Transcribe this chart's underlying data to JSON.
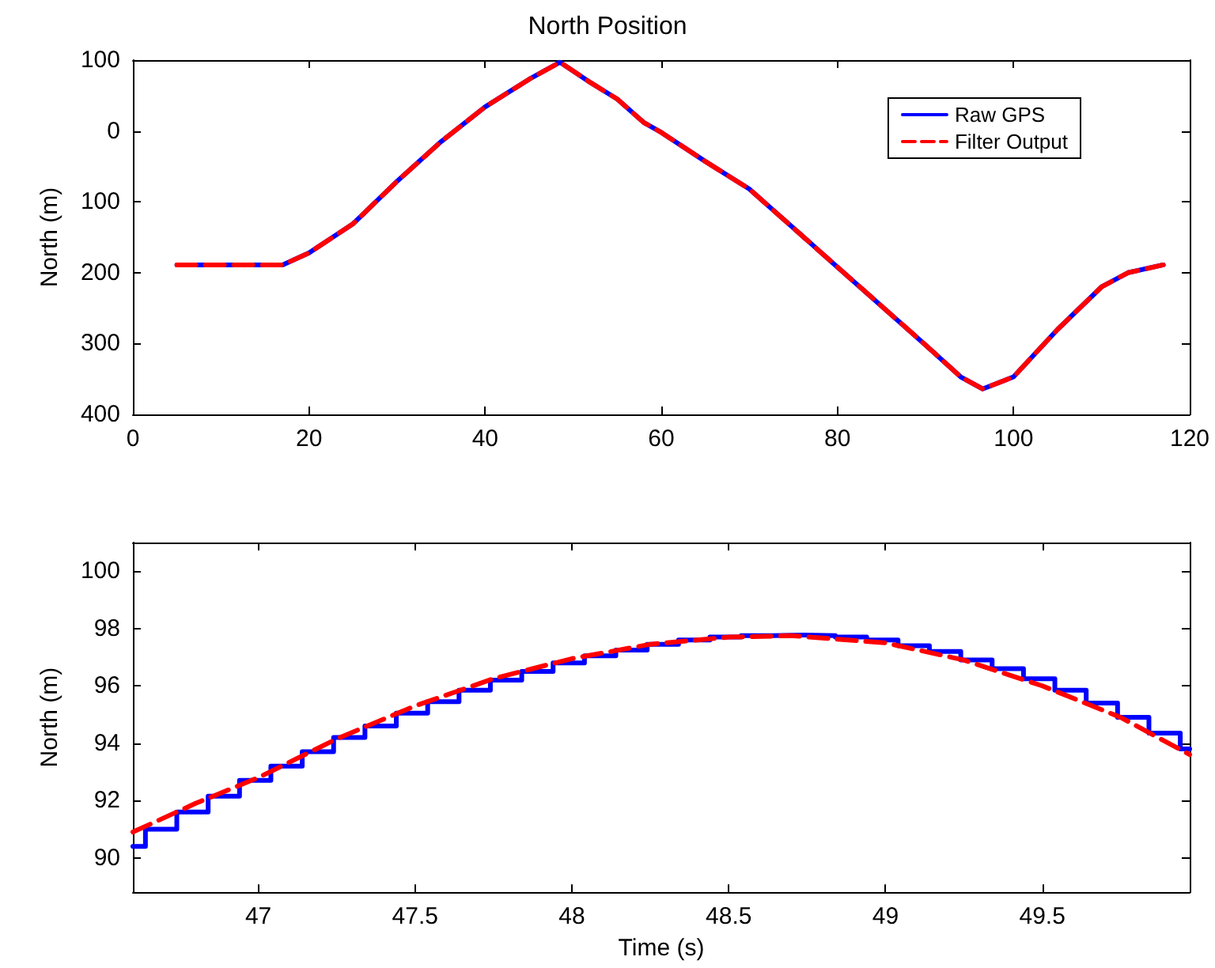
{
  "chart_data": [
    {
      "type": "line",
      "title": "North Position",
      "ylabel": "North (m)",
      "xlim": [
        0,
        120
      ],
      "xticks": [
        0,
        20,
        40,
        60,
        80,
        100,
        120
      ],
      "ylim": [
        -400,
        100
      ],
      "yticks": [
        100,
        0,
        {
          "value": -100,
          "label": "100"
        },
        {
          "value": -200,
          "label": "200"
        },
        {
          "value": -300,
          "label": "300"
        },
        {
          "value": -400,
          "label": "400"
        }
      ],
      "grid": false,
      "legend": "top right",
      "marker": "none",
      "series": [
        {
          "name": "Raw GPS",
          "color": "#0000ff",
          "line_style": "solid",
          "x": [
            5,
            10,
            17,
            20,
            25,
            30,
            35,
            40,
            45,
            48.5,
            52,
            55,
            58,
            60,
            65,
            70,
            75,
            80,
            85,
            90,
            94,
            96.5,
            100,
            105,
            110,
            113,
            117
          ],
          "values": [
            -189,
            -189,
            -189,
            -172,
            -131,
            -71,
            -15,
            34,
            73,
            97,
            68,
            45,
            12,
            -2,
            -43,
            -82,
            -137,
            -192,
            -247,
            -302,
            -347,
            -364,
            -347,
            -280,
            -220,
            -200,
            -189
          ]
        },
        {
          "name": "Filter Output",
          "color": "#ff0000",
          "line_style": "dashed",
          "x": [
            5,
            10,
            17,
            20,
            25,
            30,
            35,
            40,
            45,
            48.5,
            52,
            55,
            58,
            60,
            65,
            70,
            75,
            80,
            85,
            90,
            94,
            96.5,
            100,
            105,
            110,
            113,
            117
          ],
          "values": [
            -189,
            -189,
            -189,
            -172,
            -131,
            -71,
            -15,
            34,
            73,
            97,
            68,
            45,
            12,
            -2,
            -43,
            -82,
            -137,
            -192,
            -247,
            -302,
            -347,
            -364,
            -347,
            -280,
            -220,
            -200,
            -189
          ]
        }
      ]
    },
    {
      "type": "line",
      "xlabel": "Time (s)",
      "ylabel": "North (m)",
      "xlim": [
        46.6,
        49.97
      ],
      "xticks": [
        47,
        47.5,
        48,
        48.5,
        49,
        49.5
      ],
      "ylim": [
        88.8,
        101
      ],
      "yticks": [
        90,
        92,
        94,
        96,
        98,
        100
      ],
      "grid": false,
      "legend": false,
      "marker": "none",
      "series": [
        {
          "type": "step",
          "color": "#0000ff",
          "line_style": "solid",
          "x": [
            46.6,
            46.64,
            46.74,
            46.84,
            46.94,
            47.04,
            47.14,
            47.24,
            47.34,
            47.44,
            47.54,
            47.64,
            47.74,
            47.84,
            47.94,
            48.04,
            48.14,
            48.24,
            48.34,
            48.44,
            48.54,
            48.64,
            48.74,
            48.84,
            48.94,
            49.04,
            49.14,
            49.24,
            49.34,
            49.44,
            49.54,
            49.64,
            49.74,
            49.84,
            49.94,
            49.97
          ],
          "values": [
            90.4,
            91.0,
            91.6,
            92.15,
            92.7,
            93.2,
            93.7,
            94.2,
            94.6,
            95.05,
            95.45,
            95.85,
            96.2,
            96.5,
            96.8,
            97.05,
            97.25,
            97.45,
            97.6,
            97.7,
            97.75,
            97.77,
            97.75,
            97.7,
            97.6,
            97.4,
            97.2,
            96.9,
            96.6,
            96.25,
            95.85,
            95.4,
            94.9,
            94.35,
            93.8,
            93.8
          ]
        },
        {
          "color": "#ff0000",
          "line_style": "dashed",
          "x": [
            46.6,
            46.8,
            47,
            47.25,
            47.5,
            47.75,
            48,
            48.25,
            48.5,
            48.7,
            49,
            49.25,
            49.5,
            49.75,
            49.97
          ],
          "values": [
            90.9,
            91.9,
            92.8,
            94.15,
            95.3,
            96.25,
            96.95,
            97.45,
            97.7,
            97.75,
            97.5,
            96.9,
            96.0,
            94.9,
            93.6
          ]
        }
      ]
    }
  ]
}
